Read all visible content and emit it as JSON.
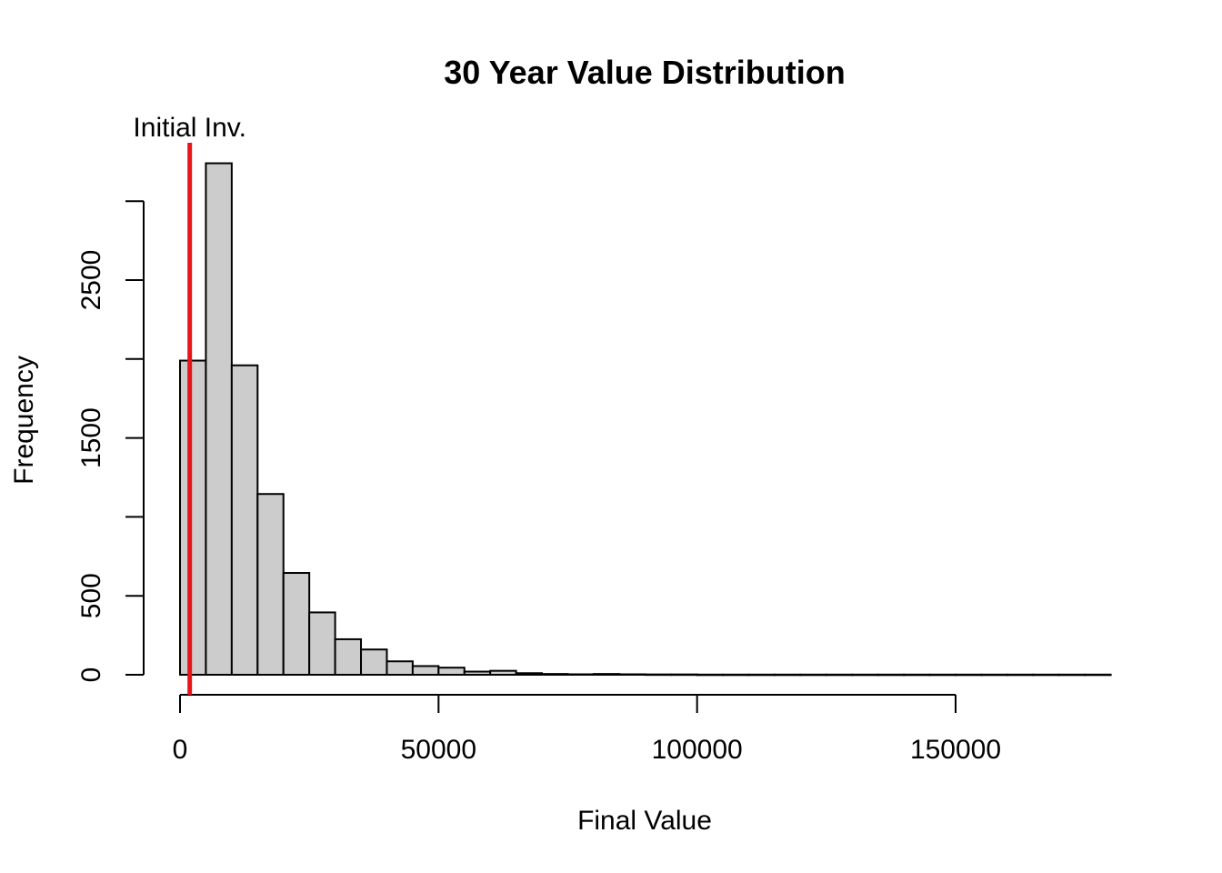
{
  "chart_data": {
    "type": "bar",
    "title": "30 Year Value Distribution",
    "xlabel": "Final Value",
    "ylabel": "Frequency",
    "bin_width": 5000,
    "bin_start": 0,
    "values": [
      1990,
      3240,
      1960,
      1145,
      645,
      395,
      225,
      160,
      85,
      55,
      45,
      20,
      25,
      10,
      5,
      3,
      5,
      3,
      2,
      2,
      1,
      1,
      1,
      1,
      1,
      1,
      1,
      1,
      1,
      1,
      1,
      1,
      1,
      1,
      1,
      1
    ],
    "x_ticks": [
      0,
      50000,
      100000,
      150000
    ],
    "x_tick_labels": [
      "0",
      "50000",
      "100000",
      "150000"
    ],
    "y_ticks": [
      0,
      500,
      1000,
      1500,
      2000,
      2500,
      3000
    ],
    "y_tick_labels": [
      "0",
      "",
      "",
      "1500",
      "",
      "2500",
      ""
    ],
    "y_tick_label_500": "500",
    "xlim": [
      0,
      180000
    ],
    "ylim": [
      0,
      3240
    ],
    "bar_fill": "#cccccc",
    "bar_stroke": "#000000",
    "reference_line": {
      "x": 1000,
      "label": "Initial Inv.",
      "color": "#e8141b"
    }
  }
}
